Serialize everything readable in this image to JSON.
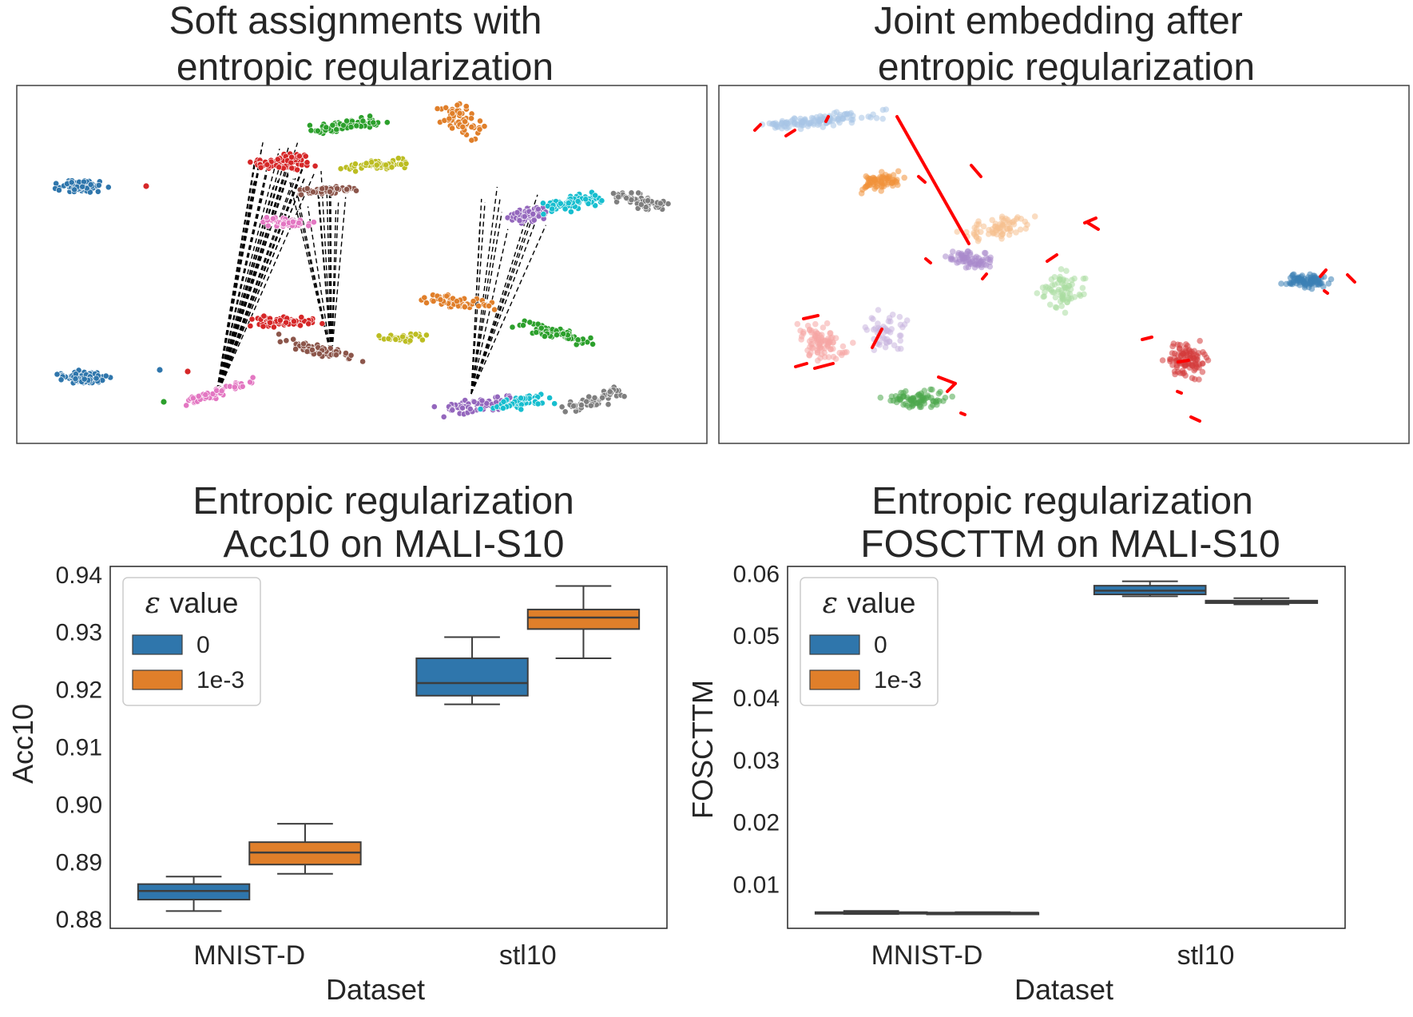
{
  "panels": {
    "top_left": {
      "title_line1": "Soft assignments with",
      "title_line2": "entropic regularization"
    },
    "top_right": {
      "title_line1": "Joint embedding after",
      "title_line2": "entropic regularization"
    }
  },
  "colors": {
    "blue": "#2f76ac",
    "orange": "#e07f2a",
    "green": "#2ca02c",
    "red": "#d62728",
    "purple": "#9467bd",
    "brown": "#8c564b",
    "pink": "#e377c2",
    "gray": "#7f7f7f",
    "olive": "#bcbd22",
    "cyan": "#17becf",
    "edge": "#3d3d3d",
    "link": "#ff0000"
  },
  "chart_data": [
    {
      "type": "scatter",
      "id": "soft-assignments",
      "title": "Soft assignments with\nentropic regularization",
      "xlabel": "",
      "ylabel": "",
      "description_points": "two copies of 10 class clusters connected by dashed assignment lines"
    },
    {
      "type": "scatter",
      "id": "joint-embedding",
      "title": "Joint embedding after\nentropic regularization",
      "xlabel": "",
      "ylabel": ""
    },
    {
      "type": "box",
      "id": "acc10",
      "title_line1": "Entropic regularization",
      "title_line2": "Acc10 on MALI-S10",
      "xlabel": "Dataset",
      "ylabel": "Acc10",
      "categories": [
        "MNIST-D",
        "stl10"
      ],
      "ylim": [
        0.8785,
        0.9415
      ],
      "yticks": [
        0.88,
        0.89,
        0.9,
        0.91,
        0.92,
        0.93,
        0.94
      ],
      "ytick_labels": [
        "0.88",
        "0.89",
        "0.90",
        "0.91",
        "0.92",
        "0.93",
        "0.94"
      ],
      "legend_title": "value",
      "legend_symbol": "ε",
      "legend_position": "top-left",
      "series": [
        {
          "name": "0",
          "boxes": [
            {
              "whislo": 0.8815,
              "q1": 0.8835,
              "med": 0.885,
              "q3": 0.8862,
              "whishi": 0.8875
            },
            {
              "whislo": 0.9175,
              "q1": 0.919,
              "med": 0.9212,
              "q3": 0.9255,
              "whishi": 0.9292
            }
          ]
        },
        {
          "name": "1e-3",
          "boxes": [
            {
              "whislo": 0.888,
              "q1": 0.8896,
              "med": 0.8917,
              "q3": 0.8935,
              "whishi": 0.8967
            },
            {
              "whislo": 0.9255,
              "q1": 0.9306,
              "med": 0.9326,
              "q3": 0.934,
              "whishi": 0.9381
            }
          ]
        }
      ]
    },
    {
      "type": "box",
      "id": "foscttm",
      "title_line1": "Entropic regularization",
      "title_line2": "FOSCTTM on MALI-S10",
      "xlabel": "Dataset",
      "ylabel": "FOSCTTM",
      "categories": [
        "MNIST-D",
        "stl10"
      ],
      "ylim": [
        0.003,
        0.0612
      ],
      "yticks": [
        0.01,
        0.02,
        0.03,
        0.04,
        0.05,
        0.06
      ],
      "ytick_labels": [
        "0.01",
        "0.02",
        "0.03",
        "0.04",
        "0.05",
        "0.06"
      ],
      "legend_title": "value",
      "legend_symbol": "ε",
      "legend_position": "top-left",
      "series": [
        {
          "name": "0",
          "boxes": [
            {
              "whislo": 0.0053,
              "q1": 0.0054,
              "med": 0.0055,
              "q3": 0.0056,
              "whishi": 0.0058
            },
            {
              "whislo": 0.0564,
              "q1": 0.0567,
              "med": 0.0573,
              "q3": 0.0581,
              "whishi": 0.0588
            }
          ]
        },
        {
          "name": "1e-3",
          "boxes": [
            {
              "whislo": 0.0053,
              "q1": 0.0054,
              "med": 0.0055,
              "q3": 0.0055,
              "whishi": 0.0056
            },
            {
              "whislo": 0.0551,
              "q1": 0.0553,
              "med": 0.0555,
              "q3": 0.0557,
              "whishi": 0.0561
            }
          ]
        }
      ]
    }
  ]
}
